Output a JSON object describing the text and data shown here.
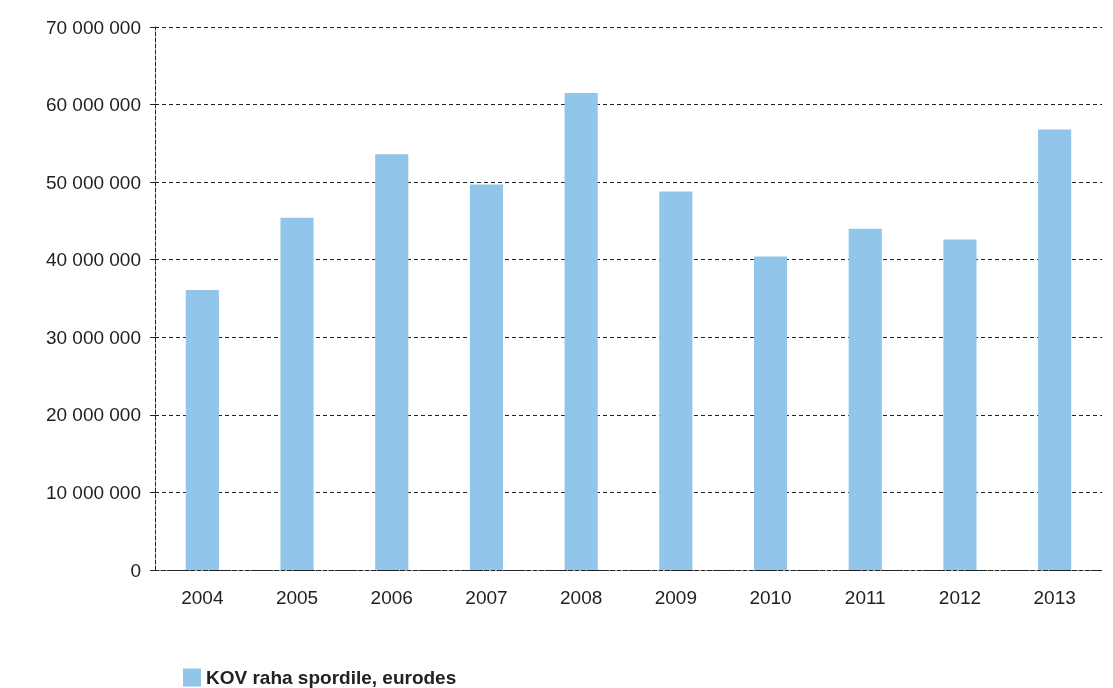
{
  "chart_data": {
    "type": "bar",
    "categories": [
      "2004",
      "2005",
      "2006",
      "2007",
      "2008",
      "2009",
      "2010",
      "2011",
      "2012",
      "2013"
    ],
    "series": [
      {
        "name": "KOV raha spordile, eurodes",
        "color": "#91c6ea",
        "values": [
          36100000,
          45400000,
          53600000,
          49700000,
          61500000,
          48800000,
          40400000,
          44000000,
          42600000,
          56800000
        ]
      }
    ],
    "ylim": [
      0,
      70000000
    ],
    "yticks": [
      {
        "value": 0,
        "label": "0"
      },
      {
        "value": 10000000,
        "label": "10 000 000"
      },
      {
        "value": 20000000,
        "label": "20 000 000"
      },
      {
        "value": 30000000,
        "label": "30 000 000"
      },
      {
        "value": 40000000,
        "label": "40 000 000"
      },
      {
        "value": 50000000,
        "label": "50 000 000"
      },
      {
        "value": 60000000,
        "label": "60 000 000"
      },
      {
        "value": 70000000,
        "label": "70 000 000"
      }
    ],
    "grid": "y",
    "legend": "bottom left"
  }
}
